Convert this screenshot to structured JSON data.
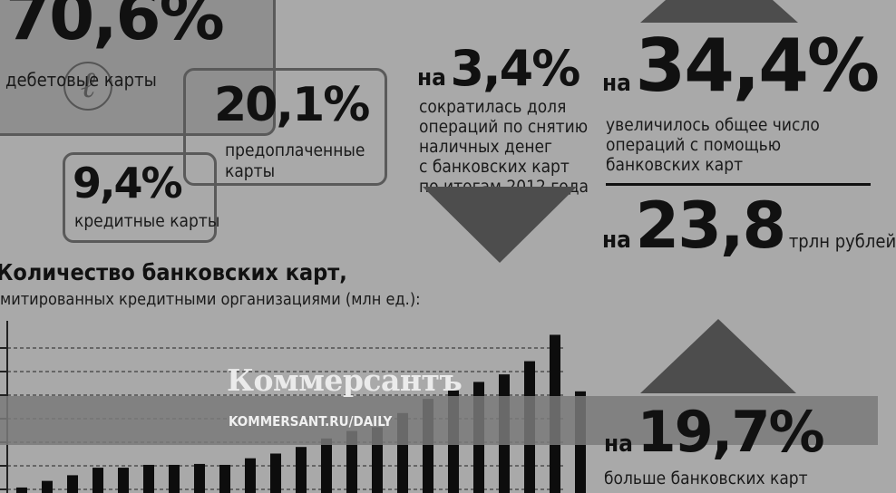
{
  "shares": {
    "debit": {
      "value": "70,6%",
      "label": "дебетовые карты"
    },
    "prepaid": {
      "value": "20,1%",
      "label_line1": "предоплаченные",
      "label_line2": "карты"
    },
    "credit": {
      "value": "9,4%",
      "label": "кредитные карты"
    }
  },
  "cash_ops": {
    "prefix": "на",
    "value": "3,4%",
    "lines": [
      "сократилась доля",
      "операций по снятию",
      "наличных денег",
      "с банковских карт",
      "по итогам 2012 года"
    ]
  },
  "ops_count": {
    "prefix": "на",
    "value": "34,4%",
    "lines": [
      "увеличилось общее число",
      "операций с помощью",
      "банковских карт"
    ]
  },
  "ops_volume": {
    "prefix": "на",
    "value": "23,8",
    "unit": "трлн рублей"
  },
  "cards_growth": {
    "prefix": "на",
    "value": "19,7%",
    "line1": "больше банковских карт"
  },
  "watermark": {
    "brand": "Коммерсантъ",
    "url": "KOMMERSANT.RU/DAILY"
  },
  "colors": {
    "background": "#a9a9a9",
    "bars": "#0d0d0d",
    "arrows": "#4d4d4d",
    "box_border": "#5a5a5a",
    "band": "#7a7a7a"
  },
  "chart_data": {
    "type": "bar",
    "title": "Количество банковских карт,",
    "subtitle": "митированных кредитными организациями (млн ед.):",
    "values": [
      2,
      9,
      15,
      23,
      23,
      26,
      26,
      27,
      26,
      33,
      38,
      45,
      54,
      62,
      66,
      81,
      96,
      105,
      114,
      122,
      136,
      164,
      104
    ],
    "ylim": [
      0,
      175
    ],
    "grid": true,
    "gridlines": [
      0,
      25,
      50,
      75,
      100,
      125,
      150
    ]
  }
}
